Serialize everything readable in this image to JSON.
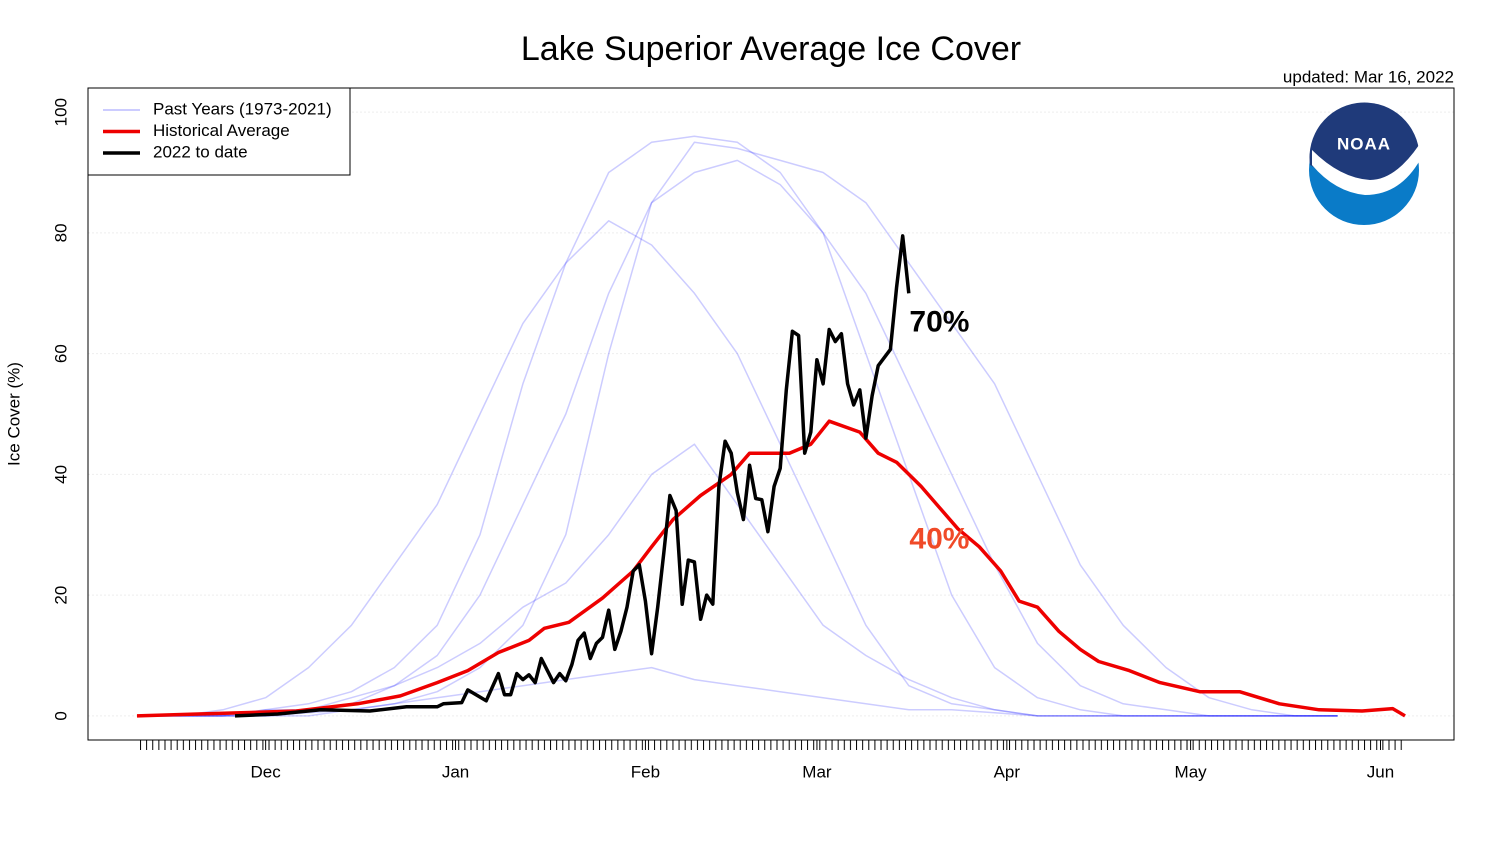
{
  "chart_data": {
    "type": "line",
    "title": "Lake Superior Average Ice Cover",
    "subtitle": "updated: Mar 16, 2022",
    "y_label": "Ice Cover (%)",
    "logo_text": "NOAA",
    "xlim": [
      -29,
      194
    ],
    "ylim": [
      -4,
      104
    ],
    "xticks": [
      {
        "value": 0,
        "label": "Dec"
      },
      {
        "value": 31,
        "label": "Jan"
      },
      {
        "value": 62,
        "label": "Feb"
      },
      {
        "value": 90,
        "label": "Mar"
      },
      {
        "value": 121,
        "label": "Apr"
      },
      {
        "value": 151,
        "label": "May"
      },
      {
        "value": 182,
        "label": "Jun"
      }
    ],
    "yticks": [
      0,
      20,
      40,
      60,
      80,
      100
    ],
    "grid": true,
    "legend": "top-left",
    "series": [
      {
        "name": "Past Years (1973-2021)",
        "color": "#0000ff",
        "x": [
          -21,
          -14,
          -7,
          0,
          7,
          14,
          21,
          28,
          35,
          42,
          49,
          56,
          63,
          70,
          77,
          84,
          91,
          98,
          105,
          112,
          119,
          126,
          133,
          140,
          147,
          154,
          161,
          168,
          175
        ],
        "values": [
          [
            0,
            0,
            0,
            1,
            2,
            4,
            8,
            15,
            30,
            55,
            75,
            90,
            95,
            96,
            95,
            90,
            80,
            60,
            40,
            20,
            8,
            3,
            1,
            0,
            0,
            0,
            0,
            0,
            0
          ],
          [
            0,
            0,
            0,
            0,
            0.5,
            1,
            2,
            3,
            4,
            5,
            6,
            7,
            8,
            6,
            5,
            4,
            3,
            2,
            1,
            1,
            0.5,
            0,
            0,
            0,
            0,
            0,
            0,
            0,
            0
          ],
          [
            0,
            0,
            0,
            0,
            1,
            2,
            5,
            10,
            20,
            35,
            50,
            70,
            85,
            90,
            92,
            88,
            80,
            70,
            55,
            40,
            25,
            12,
            5,
            2,
            1,
            0,
            0,
            0,
            0
          ],
          [
            0,
            0,
            1,
            3,
            8,
            15,
            25,
            35,
            50,
            65,
            75,
            82,
            78,
            70,
            60,
            45,
            30,
            15,
            5,
            2,
            1,
            0,
            0,
            0,
            0,
            0,
            0,
            0,
            0
          ],
          [
            0,
            0,
            0,
            0,
            0,
            1,
            2,
            4,
            8,
            15,
            30,
            60,
            85,
            95,
            94,
            92,
            90,
            85,
            75,
            65,
            55,
            40,
            25,
            15,
            8,
            3,
            1,
            0,
            0
          ],
          [
            0,
            0,
            0,
            1,
            1,
            3,
            5,
            8,
            12,
            18,
            22,
            30,
            40,
            45,
            35,
            25,
            15,
            10,
            6,
            3,
            1,
            0,
            0,
            0,
            0,
            0,
            0,
            0,
            0
          ]
        ]
      },
      {
        "name": "Historical Average",
        "color": "#ee0000",
        "x": [
          -21,
          -11,
          -4,
          5,
          15,
          22,
          28,
          33,
          38,
          43,
          45.5,
          49.5,
          55,
          60,
          63,
          66.5,
          71,
          76,
          79,
          85.5,
          89,
          92,
          97,
          100,
          103,
          107,
          110,
          113,
          116.5,
          120,
          123,
          126,
          129.5,
          133,
          136,
          141,
          146,
          152.5,
          159,
          165.5,
          172,
          179,
          184,
          186
        ],
        "values": [
          0,
          0.3,
          0.5,
          0.8,
          2,
          3.3,
          5.5,
          7.5,
          10.5,
          12.5,
          14.5,
          15.5,
          19.5,
          24,
          28,
          32.5,
          36.5,
          40,
          43.5,
          43.5,
          45,
          48.8,
          47,
          43.5,
          42,
          38,
          34.5,
          31,
          28,
          24,
          19,
          18,
          14,
          11,
          9,
          7.5,
          5.5,
          4,
          4,
          2,
          1,
          0.8,
          1.2,
          0
        ]
      },
      {
        "name": "2022 to date",
        "color": "#000000",
        "x": [
          -5,
          2,
          9,
          17,
          23,
          28,
          29,
          32,
          33,
          36,
          38,
          39,
          40,
          41,
          42,
          43,
          44,
          45,
          46,
          47,
          48,
          49,
          50,
          51,
          52,
          53,
          54,
          55,
          56,
          57,
          58,
          59,
          60,
          61,
          62,
          63,
          64,
          65,
          66,
          67,
          68,
          69,
          70,
          71,
          72,
          73,
          74,
          75,
          76,
          77,
          78,
          79,
          80,
          81,
          82,
          83,
          84,
          85,
          86,
          87,
          88,
          89,
          90,
          91,
          92,
          93,
          94,
          95,
          96,
          97,
          98,
          99,
          100,
          102,
          103,
          104,
          105
        ],
        "values": [
          0,
          0.3,
          1,
          0.8,
          1.5,
          1.5,
          2,
          2.2,
          4.3,
          2.5,
          7,
          3.5,
          3.5,
          7,
          6,
          6.8,
          5.5,
          9.5,
          7.5,
          5.5,
          7,
          5.8,
          8.5,
          12.5,
          13.7,
          9.5,
          12,
          13,
          17.5,
          11,
          14,
          18,
          24,
          25,
          19,
          10.3,
          18,
          27,
          36.5,
          34,
          18.5,
          25.8,
          25.5,
          16,
          20,
          18.5,
          38,
          45.5,
          43.5,
          37,
          32.5,
          41.5,
          36,
          35.8,
          30.5,
          38,
          41,
          54,
          63.7,
          63,
          43.5,
          47,
          59,
          55,
          64,
          62,
          63.3,
          55,
          51.5,
          54,
          46,
          53,
          58,
          60.7,
          71,
          79.5,
          70
        ]
      }
    ],
    "annotations": [
      {
        "text": "70%",
        "x": 110,
        "y": 65,
        "color": "#000000"
      },
      {
        "text": "40%",
        "x": 110,
        "y": 29,
        "color": "#f04a28"
      }
    ]
  }
}
